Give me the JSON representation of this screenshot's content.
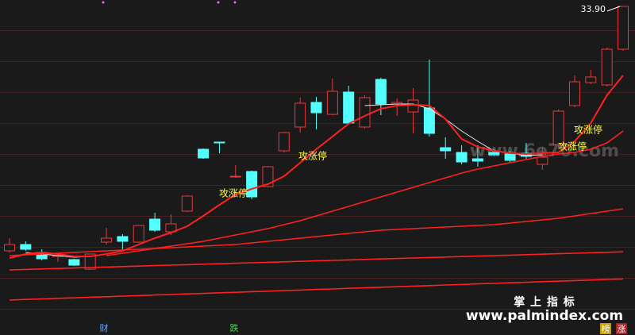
{
  "chart_data": {
    "type": "candlestick",
    "ylim": [
      14.3,
      34.3
    ],
    "up_color": "#e8383d",
    "down_color": "#54ffff",
    "open": [
      18.5,
      18.9,
      18.4,
      18.15,
      17.95,
      17.35,
      19.05,
      19.4,
      19.05,
      20.5,
      19.7,
      21.0,
      24.9,
      25.35,
      23.15,
      23.5,
      22.55,
      24.8,
      26.3,
      27.85,
      27.1,
      28.5,
      26.3,
      29.3,
      27.75,
      27.25,
      27.5,
      25.0,
      24.7,
      24.3,
      24.7,
      24.6,
      24.65,
      23.95,
      25.2,
      27.65,
      29.1,
      28.95,
      31.2
    ],
    "high": [
      19.3,
      19.1,
      18.6,
      18.3,
      18.0,
      18.3,
      19.95,
      19.55,
      20.1,
      20.9,
      20.8,
      22.0,
      24.95,
      25.35,
      23.9,
      23.55,
      23.85,
      26.0,
      28.15,
      28.2,
      29.35,
      28.9,
      28.3,
      29.4,
      28.1,
      28.75,
      30.55,
      25.65,
      25.15,
      25.15,
      24.9,
      24.8,
      25.3,
      25.0,
      27.4,
      29.55,
      29.9,
      31.3,
      33.9
    ],
    "low": [
      18.4,
      18.5,
      17.9,
      17.8,
      17.55,
      17.3,
      18.9,
      18.5,
      19.0,
      19.7,
      19.5,
      20.95,
      24.3,
      24.65,
      23.1,
      21.75,
      22.5,
      24.7,
      25.95,
      26.15,
      27.05,
      26.45,
      26.2,
      27.05,
      27.0,
      25.9,
      25.7,
      24.3,
      23.95,
      23.8,
      24.45,
      24.05,
      24.3,
      23.6,
      25.0,
      27.55,
      29.0,
      28.85,
      31.1
    ],
    "close": [
      18.9,
      18.6,
      18.0,
      18.2,
      17.6,
      18.3,
      19.3,
      19.1,
      20.1,
      19.8,
      20.2,
      21.95,
      24.35,
      25.3,
      23.2,
      21.9,
      23.8,
      25.95,
      27.8,
      27.2,
      28.55,
      26.55,
      28.15,
      27.75,
      27.85,
      28.0,
      25.9,
      24.8,
      24.1,
      24.15,
      24.55,
      24.2,
      24.45,
      24.4,
      27.3,
      29.15,
      29.45,
      31.2,
      33.9
    ],
    "max_marker": {
      "value": 33.9,
      "label": "33.90"
    },
    "lines": [
      {
        "color": "#e8e8e8",
        "values": [
          null,
          18.4,
          18.3,
          18.2,
          18.1,
          18.15,
          null,
          null,
          null,
          null,
          null,
          null,
          null,
          null,
          null,
          null,
          null,
          null,
          null,
          null,
          null,
          null,
          27.65,
          27.7,
          27.75,
          27.75,
          27.45,
          26.8,
          26.05,
          25.4,
          24.8,
          24.65,
          24.5,
          24.55,
          null,
          null,
          null,
          null,
          null
        ]
      },
      {
        "color": "#ff2020",
        "values": [
          18.05,
          18.3,
          18.4,
          18.3,
          18.15,
          18.15,
          18.3,
          18.5,
          18.9,
          19.3,
          19.65,
          20.05,
          20.7,
          21.4,
          22.05,
          22.4,
          22.7,
          23.2,
          24.05,
          24.9,
          25.7,
          26.5,
          27.0,
          27.45,
          27.65,
          27.7,
          27.65,
          26.8,
          25.55,
          25.05,
          24.8,
          24.65,
          24.6,
          24.65,
          24.7,
          25.4,
          26.55,
          28.3,
          29.55
        ]
      },
      {
        "color": "#ff2020",
        "values": [
          null,
          null,
          null,
          null,
          null,
          null,
          18.2,
          18.35,
          18.5,
          18.65,
          18.8,
          18.95,
          19.1,
          19.3,
          19.5,
          19.7,
          19.9,
          20.15,
          20.4,
          20.7,
          21.0,
          21.3,
          21.6,
          21.9,
          22.2,
          22.5,
          22.8,
          23.1,
          23.4,
          23.65,
          23.85,
          24.05,
          24.25,
          24.45,
          24.6,
          24.7,
          24.9,
          25.3,
          26.05
        ]
      },
      {
        "color": "#ff2020",
        "values": [
          18.2,
          18.25,
          18.3,
          18.35,
          18.4,
          18.45,
          18.5,
          18.55,
          18.6,
          18.65,
          18.7,
          18.75,
          18.8,
          18.85,
          18.9,
          19.0,
          19.1,
          19.2,
          19.3,
          19.4,
          19.5,
          19.6,
          19.7,
          19.8,
          19.85,
          19.9,
          19.95,
          20.0,
          20.05,
          20.1,
          20.15,
          20.25,
          20.35,
          20.45,
          20.55,
          20.7,
          20.85,
          21.0,
          21.15
        ]
      },
      {
        "color": "#ff2020",
        "values": [
          17.3,
          17.33,
          17.36,
          17.39,
          17.42,
          17.45,
          17.48,
          17.51,
          17.54,
          17.57,
          17.6,
          17.63,
          17.66,
          17.69,
          17.72,
          17.75,
          17.78,
          17.81,
          17.84,
          17.87,
          17.9,
          17.93,
          17.96,
          17.99,
          18.02,
          18.05,
          18.08,
          18.11,
          18.14,
          18.17,
          18.2,
          18.23,
          18.26,
          18.29,
          18.32,
          18.35,
          18.38,
          18.41,
          18.44
        ]
      },
      {
        "color": "#ff2020",
        "values": [
          15.4,
          15.44,
          15.47,
          15.51,
          15.54,
          15.58,
          15.61,
          15.65,
          15.68,
          15.72,
          15.75,
          15.79,
          15.82,
          15.86,
          15.89,
          15.93,
          15.96,
          16.0,
          16.03,
          16.07,
          16.1,
          16.14,
          16.17,
          16.21,
          16.24,
          16.28,
          16.31,
          16.35,
          16.38,
          16.42,
          16.45,
          16.49,
          16.52,
          16.56,
          16.59,
          16.63,
          16.66,
          16.7,
          16.73
        ]
      }
    ],
    "annotations": [
      "攻涨停",
      "攻涨停",
      "攻涨停",
      "攻涨停"
    ]
  },
  "overlay": {
    "site": "www.6e70.com",
    "brand": "掌 上 指 标",
    "brand_url": "www.palmindex.com"
  },
  "footer": {
    "labels": [
      "财",
      "跌",
      "榜",
      "涨"
    ]
  }
}
